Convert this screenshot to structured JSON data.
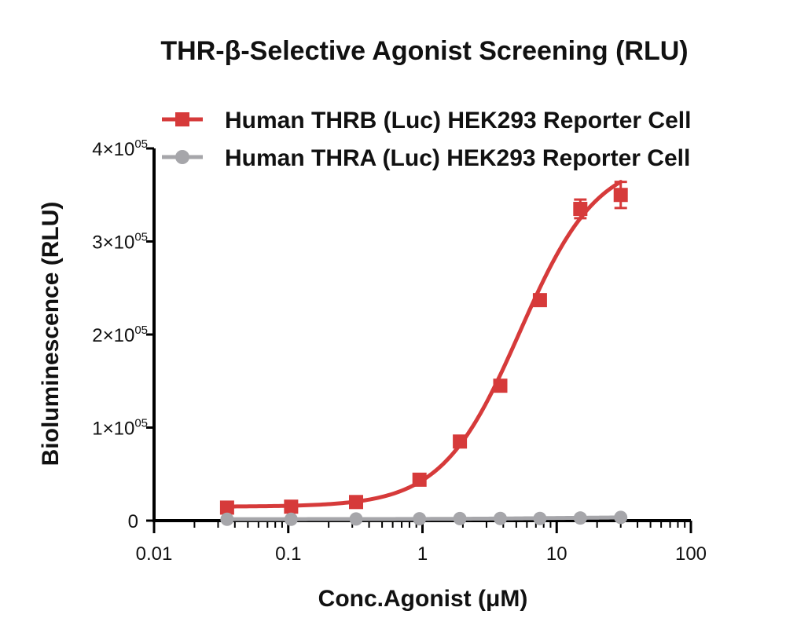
{
  "chart_data": {
    "type": "scatter",
    "title": "THR-β-Selective Agonist Screening (RLU)",
    "xlabel": "Conc.Agonist (μM)",
    "ylabel": "Bioluminescence (RLU)",
    "x_scale": "log",
    "xlim": [
      0.01,
      100
    ],
    "ylim": [
      0,
      400000
    ],
    "x_ticks": [
      {
        "value": 0.01,
        "label": "0.01"
      },
      {
        "value": 0.1,
        "label": "0.1"
      },
      {
        "value": 1,
        "label": "1"
      },
      {
        "value": 10,
        "label": "10"
      },
      {
        "value": 100,
        "label": "100"
      }
    ],
    "y_ticks": [
      {
        "value": 0,
        "label": "0",
        "sup": ""
      },
      {
        "value": 100000,
        "label": "1×10",
        "sup": "05"
      },
      {
        "value": 200000,
        "label": "2×10",
        "sup": "05"
      },
      {
        "value": 300000,
        "label": "3×10",
        "sup": "05"
      },
      {
        "value": 400000,
        "label": "4×10",
        "sup": "05"
      }
    ],
    "legend_position": "top-right",
    "series": [
      {
        "name": "Human THRB (Luc) HEK293 Reporter Cell",
        "color": "#d63a3a",
        "marker": "square",
        "x": [
          0.035,
          0.105,
          0.32,
          0.95,
          1.9,
          3.8,
          7.5,
          15,
          30
        ],
        "y": [
          14000,
          15000,
          20000,
          44000,
          85000,
          145000,
          237000,
          335000,
          350000
        ],
        "error": [
          3000,
          3000,
          3000,
          3000,
          4000,
          4000,
          4000,
          10000,
          14000
        ],
        "fit": {
          "bottom": 15000,
          "top": 390000,
          "ec50": 5.3,
          "hill": 1.5
        }
      },
      {
        "name": "Human THRA (Luc) HEK293 Reporter Cell",
        "color": "#a6a6aa",
        "marker": "circle",
        "x": [
          0.035,
          0.105,
          0.32,
          0.95,
          1.9,
          3.8,
          7.5,
          15,
          30
        ],
        "y": [
          1500,
          1500,
          1800,
          2000,
          2200,
          2300,
          2300,
          2800,
          3500
        ],
        "error": [
          0,
          0,
          0,
          0,
          0,
          0,
          0,
          0,
          0
        ],
        "fit": {
          "bottom": 1600,
          "top": 4000,
          "ec50": 10,
          "hill": 1
        }
      }
    ]
  }
}
